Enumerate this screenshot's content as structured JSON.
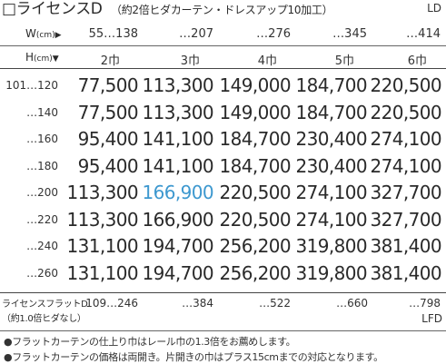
{
  "title": {
    "main": "□ライセンスD",
    "sub": "（約2倍ヒダカーテン・ドレスアップ10加工）",
    "code": "LD"
  },
  "header": {
    "width_label": "W",
    "width_unit": "(cm)",
    "width_arrow": "▶",
    "widths": [
      "55…138",
      "…207",
      "…276",
      "…345",
      "…414"
    ],
    "height_label": "H",
    "height_unit": "(cm)",
    "height_arrow": "▼",
    "panels": [
      "2巾",
      "3巾",
      "4巾",
      "5巾",
      "6巾"
    ]
  },
  "rows": [
    {
      "height": "101…120",
      "prices": [
        "77,500",
        "113,300",
        "149,000",
        "184,700",
        "220,500"
      ]
    },
    {
      "height": "…140",
      "prices": [
        "77,500",
        "113,300",
        "149,000",
        "184,700",
        "220,500"
      ]
    },
    {
      "height": "…160",
      "prices": [
        "95,400",
        "141,100",
        "184,700",
        "230,400",
        "274,100"
      ]
    },
    {
      "height": "…180",
      "prices": [
        "95,400",
        "141,100",
        "184,700",
        "230,400",
        "274,100"
      ]
    },
    {
      "height": "…200",
      "prices": [
        "113,300",
        "166,900",
        "220,500",
        "274,100",
        "327,700"
      ]
    },
    {
      "height": "…220",
      "prices": [
        "113,300",
        "166,900",
        "220,500",
        "274,100",
        "327,700"
      ]
    },
    {
      "height": "…240",
      "prices": [
        "131,100",
        "194,700",
        "256,200",
        "319,800",
        "381,400"
      ]
    },
    {
      "height": "…260",
      "prices": [
        "131,100",
        "194,700",
        "256,200",
        "319,800",
        "381,400"
      ]
    }
  ],
  "highlight_color": "#3d98cf",
  "flat": {
    "label_line1": "ライセンスフラットD",
    "label_line2": "（約1.0倍ヒダなし）",
    "widths": [
      "109…246",
      "…384",
      "…522",
      "…660",
      "…798"
    ],
    "code": "LFD"
  },
  "notes": [
    "●フラットカーテンの仕上り巾はレール巾の1.3倍をお薦めします。",
    "●フラットカーテンの価格は両開き。片開きの巾はプラス15cmまでの対応となります。"
  ]
}
